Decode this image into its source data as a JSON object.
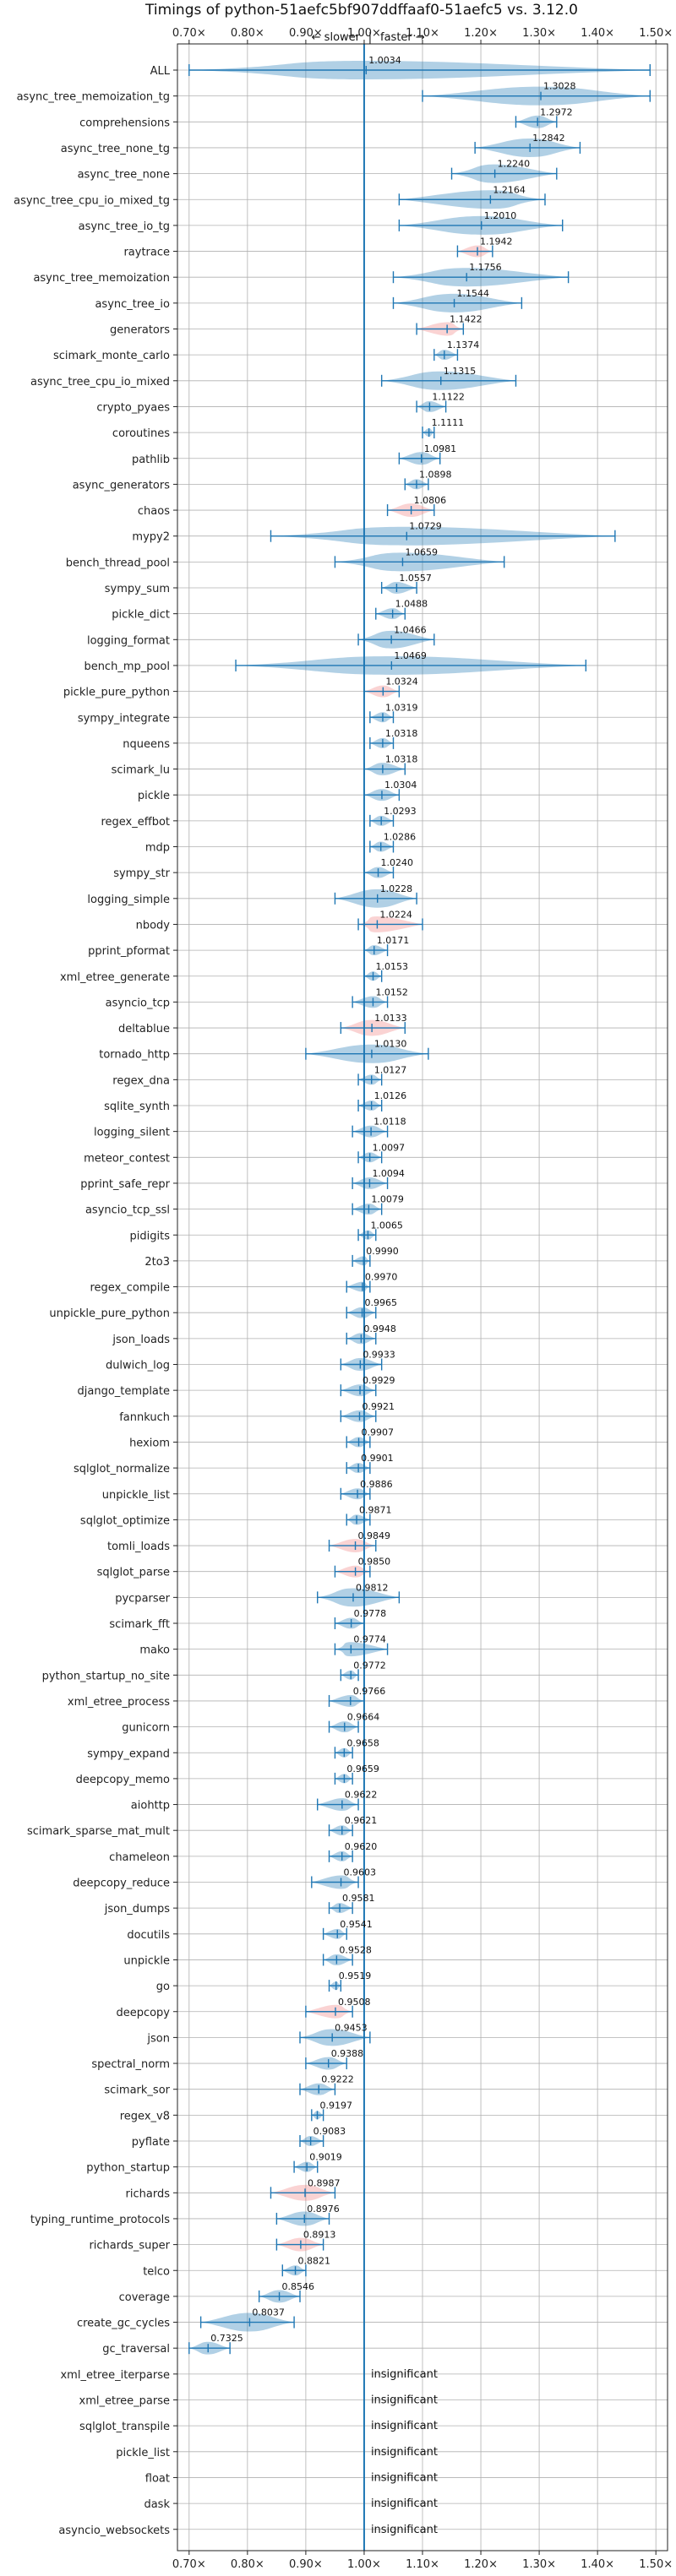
{
  "chart_data": {
    "type": "violin",
    "title": "Timings of python-51aefc5bf907ddffaaf0-51aefc5 vs. 3.12.0",
    "x_axis": {
      "xlim": [
        0.68,
        1.52
      ],
      "tick_values": [
        0.7,
        0.8,
        0.9,
        1.0,
        1.1,
        1.2,
        1.3,
        1.4,
        1.5
      ],
      "tick_labels": [
        "0.70×",
        "0.80×",
        "0.90×",
        "1.00×",
        "1.10×",
        "1.20×",
        "1.30×",
        "1.40×",
        "1.50×"
      ],
      "reference_line": 1.0,
      "ticks_top_and_bottom": true,
      "grid": true
    },
    "direction_labels": {
      "slower": "← slower",
      "separator": "|",
      "faster": "faster →"
    },
    "insignificant_text": "insignificant",
    "colors": {
      "normal": "#1f77b4",
      "slower": "#f08080"
    },
    "benchmarks": [
      {
        "name": "ALL",
        "value": 1.0034,
        "min": 0.7,
        "max": 1.49,
        "color": "normal"
      },
      {
        "name": "async_tree_memoization_tg",
        "value": 1.3028,
        "min": 1.1,
        "max": 1.49,
        "color": "normal"
      },
      {
        "name": "comprehensions",
        "value": 1.2972,
        "min": 1.26,
        "max": 1.33,
        "color": "normal"
      },
      {
        "name": "async_tree_none_tg",
        "value": 1.2842,
        "min": 1.19,
        "max": 1.37,
        "color": "normal"
      },
      {
        "name": "async_tree_none",
        "value": 1.224,
        "min": 1.15,
        "max": 1.33,
        "color": "normal"
      },
      {
        "name": "async_tree_cpu_io_mixed_tg",
        "value": 1.2164,
        "min": 1.06,
        "max": 1.31,
        "color": "normal"
      },
      {
        "name": "async_tree_io_tg",
        "value": 1.201,
        "min": 1.06,
        "max": 1.34,
        "color": "normal"
      },
      {
        "name": "raytrace",
        "value": 1.1942,
        "min": 1.16,
        "max": 1.22,
        "color": "slower"
      },
      {
        "name": "async_tree_memoization",
        "value": 1.1756,
        "min": 1.05,
        "max": 1.35,
        "color": "normal"
      },
      {
        "name": "async_tree_io",
        "value": 1.1544,
        "min": 1.05,
        "max": 1.27,
        "color": "normal"
      },
      {
        "name": "generators",
        "value": 1.1422,
        "min": 1.09,
        "max": 1.17,
        "color": "slower"
      },
      {
        "name": "scimark_monte_carlo",
        "value": 1.1374,
        "min": 1.12,
        "max": 1.16,
        "color": "normal"
      },
      {
        "name": "async_tree_cpu_io_mixed",
        "value": 1.1315,
        "min": 1.03,
        "max": 1.26,
        "color": "normal"
      },
      {
        "name": "crypto_pyaes",
        "value": 1.1122,
        "min": 1.09,
        "max": 1.14,
        "color": "normal"
      },
      {
        "name": "coroutines",
        "value": 1.1111,
        "min": 1.1,
        "max": 1.12,
        "color": "normal"
      },
      {
        "name": "pathlib",
        "value": 1.0981,
        "min": 1.06,
        "max": 1.13,
        "color": "normal"
      },
      {
        "name": "async_generators",
        "value": 1.0898,
        "min": 1.07,
        "max": 1.11,
        "color": "normal"
      },
      {
        "name": "chaos",
        "value": 1.0806,
        "min": 1.04,
        "max": 1.12,
        "color": "slower"
      },
      {
        "name": "mypy2",
        "value": 1.0729,
        "min": 0.84,
        "max": 1.43,
        "color": "normal"
      },
      {
        "name": "bench_thread_pool",
        "value": 1.0659,
        "min": 0.95,
        "max": 1.24,
        "color": "normal"
      },
      {
        "name": "sympy_sum",
        "value": 1.0557,
        "min": 1.03,
        "max": 1.09,
        "color": "normal"
      },
      {
        "name": "pickle_dict",
        "value": 1.0488,
        "min": 1.02,
        "max": 1.07,
        "color": "normal"
      },
      {
        "name": "logging_format",
        "value": 1.0466,
        "min": 0.99,
        "max": 1.12,
        "color": "normal"
      },
      {
        "name": "bench_mp_pool",
        "value": 1.0469,
        "min": 0.78,
        "max": 1.38,
        "color": "normal"
      },
      {
        "name": "pickle_pure_python",
        "value": 1.0324,
        "min": 1.0,
        "max": 1.06,
        "color": "slower"
      },
      {
        "name": "sympy_integrate",
        "value": 1.0319,
        "min": 1.01,
        "max": 1.05,
        "color": "normal"
      },
      {
        "name": "nqueens",
        "value": 1.0318,
        "min": 1.01,
        "max": 1.05,
        "color": "normal"
      },
      {
        "name": "scimark_lu",
        "value": 1.0318,
        "min": 1.0,
        "max": 1.07,
        "color": "normal"
      },
      {
        "name": "pickle",
        "value": 1.0304,
        "min": 1.0,
        "max": 1.06,
        "color": "normal"
      },
      {
        "name": "regex_effbot",
        "value": 1.0293,
        "min": 1.01,
        "max": 1.05,
        "color": "normal"
      },
      {
        "name": "mdp",
        "value": 1.0286,
        "min": 1.01,
        "max": 1.05,
        "color": "normal"
      },
      {
        "name": "sympy_str",
        "value": 1.024,
        "min": 1.0,
        "max": 1.05,
        "color": "normal"
      },
      {
        "name": "logging_simple",
        "value": 1.0228,
        "min": 0.95,
        "max": 1.09,
        "color": "normal"
      },
      {
        "name": "nbody",
        "value": 1.0224,
        "min": 0.99,
        "max": 1.1,
        "color": "slower"
      },
      {
        "name": "pprint_pformat",
        "value": 1.0171,
        "min": 1.0,
        "max": 1.04,
        "color": "normal"
      },
      {
        "name": "xml_etree_generate",
        "value": 1.0153,
        "min": 1.0,
        "max": 1.03,
        "color": "normal"
      },
      {
        "name": "asyncio_tcp",
        "value": 1.0152,
        "min": 0.98,
        "max": 1.04,
        "color": "normal"
      },
      {
        "name": "deltablue",
        "value": 1.0133,
        "min": 0.96,
        "max": 1.07,
        "color": "slower"
      },
      {
        "name": "tornado_http",
        "value": 1.013,
        "min": 0.9,
        "max": 1.11,
        "color": "normal"
      },
      {
        "name": "regex_dna",
        "value": 1.0127,
        "min": 0.99,
        "max": 1.03,
        "color": "normal"
      },
      {
        "name": "sqlite_synth",
        "value": 1.0126,
        "min": 0.99,
        "max": 1.03,
        "color": "normal"
      },
      {
        "name": "logging_silent",
        "value": 1.0118,
        "min": 0.98,
        "max": 1.04,
        "color": "normal"
      },
      {
        "name": "meteor_contest",
        "value": 1.0097,
        "min": 0.99,
        "max": 1.03,
        "color": "normal"
      },
      {
        "name": "pprint_safe_repr",
        "value": 1.0094,
        "min": 0.98,
        "max": 1.04,
        "color": "normal"
      },
      {
        "name": "asyncio_tcp_ssl",
        "value": 1.0079,
        "min": 0.98,
        "max": 1.03,
        "color": "normal"
      },
      {
        "name": "pidigits",
        "value": 1.0065,
        "min": 0.99,
        "max": 1.02,
        "color": "normal"
      },
      {
        "name": "2to3",
        "value": 0.999,
        "min": 0.98,
        "max": 1.01,
        "color": "normal"
      },
      {
        "name": "regex_compile",
        "value": 0.997,
        "min": 0.97,
        "max": 1.01,
        "color": "normal"
      },
      {
        "name": "unpickle_pure_python",
        "value": 0.9965,
        "min": 0.97,
        "max": 1.02,
        "color": "normal"
      },
      {
        "name": "json_loads",
        "value": 0.9948,
        "min": 0.97,
        "max": 1.02,
        "color": "normal"
      },
      {
        "name": "dulwich_log",
        "value": 0.9933,
        "min": 0.96,
        "max": 1.03,
        "color": "normal"
      },
      {
        "name": "django_template",
        "value": 0.9929,
        "min": 0.96,
        "max": 1.02,
        "color": "normal"
      },
      {
        "name": "fannkuch",
        "value": 0.9921,
        "min": 0.96,
        "max": 1.02,
        "color": "normal"
      },
      {
        "name": "hexiom",
        "value": 0.9907,
        "min": 0.97,
        "max": 1.01,
        "color": "normal"
      },
      {
        "name": "sqlglot_normalize",
        "value": 0.9901,
        "min": 0.97,
        "max": 1.01,
        "color": "normal"
      },
      {
        "name": "unpickle_list",
        "value": 0.9886,
        "min": 0.96,
        "max": 1.01,
        "color": "normal"
      },
      {
        "name": "sqlglot_optimize",
        "value": 0.9871,
        "min": 0.97,
        "max": 1.01,
        "color": "normal"
      },
      {
        "name": "tomli_loads",
        "value": 0.9849,
        "min": 0.94,
        "max": 1.02,
        "color": "slower"
      },
      {
        "name": "sqlglot_parse",
        "value": 0.985,
        "min": 0.95,
        "max": 1.01,
        "color": "slower"
      },
      {
        "name": "pycparser",
        "value": 0.9812,
        "min": 0.92,
        "max": 1.06,
        "color": "normal"
      },
      {
        "name": "scimark_fft",
        "value": 0.9778,
        "min": 0.95,
        "max": 1.0,
        "color": "normal"
      },
      {
        "name": "mako",
        "value": 0.9774,
        "min": 0.95,
        "max": 1.04,
        "color": "normal"
      },
      {
        "name": "python_startup_no_site",
        "value": 0.9772,
        "min": 0.96,
        "max": 0.99,
        "color": "normal"
      },
      {
        "name": "xml_etree_process",
        "value": 0.9766,
        "min": 0.94,
        "max": 1.0,
        "color": "normal"
      },
      {
        "name": "gunicorn",
        "value": 0.9664,
        "min": 0.94,
        "max": 0.99,
        "color": "normal"
      },
      {
        "name": "sympy_expand",
        "value": 0.9658,
        "min": 0.95,
        "max": 0.98,
        "color": "normal"
      },
      {
        "name": "deepcopy_memo",
        "value": 0.9659,
        "min": 0.95,
        "max": 0.98,
        "color": "normal"
      },
      {
        "name": "aiohttp",
        "value": 0.9622,
        "min": 0.92,
        "max": 0.99,
        "color": "normal"
      },
      {
        "name": "scimark_sparse_mat_mult",
        "value": 0.9621,
        "min": 0.94,
        "max": 0.98,
        "color": "normal"
      },
      {
        "name": "chameleon",
        "value": 0.962,
        "min": 0.94,
        "max": 0.98,
        "color": "normal"
      },
      {
        "name": "deepcopy_reduce",
        "value": 0.9603,
        "min": 0.91,
        "max": 0.99,
        "color": "normal"
      },
      {
        "name": "json_dumps",
        "value": 0.9581,
        "min": 0.94,
        "max": 0.98,
        "color": "normal"
      },
      {
        "name": "docutils",
        "value": 0.9541,
        "min": 0.93,
        "max": 0.97,
        "color": "normal"
      },
      {
        "name": "unpickle",
        "value": 0.9528,
        "min": 0.93,
        "max": 0.98,
        "color": "normal"
      },
      {
        "name": "go",
        "value": 0.9519,
        "min": 0.94,
        "max": 0.96,
        "color": "normal"
      },
      {
        "name": "deepcopy",
        "value": 0.9508,
        "min": 0.9,
        "max": 0.98,
        "color": "slower"
      },
      {
        "name": "json",
        "value": 0.9453,
        "min": 0.89,
        "max": 1.01,
        "color": "normal"
      },
      {
        "name": "spectral_norm",
        "value": 0.9388,
        "min": 0.9,
        "max": 0.97,
        "color": "normal"
      },
      {
        "name": "scimark_sor",
        "value": 0.9222,
        "min": 0.89,
        "max": 0.95,
        "color": "normal"
      },
      {
        "name": "regex_v8",
        "value": 0.9197,
        "min": 0.91,
        "max": 0.93,
        "color": "normal"
      },
      {
        "name": "pyflate",
        "value": 0.9083,
        "min": 0.89,
        "max": 0.93,
        "color": "normal"
      },
      {
        "name": "python_startup",
        "value": 0.9019,
        "min": 0.88,
        "max": 0.92,
        "color": "normal"
      },
      {
        "name": "richards",
        "value": 0.8987,
        "min": 0.84,
        "max": 0.95,
        "color": "slower"
      },
      {
        "name": "typing_runtime_protocols",
        "value": 0.8976,
        "min": 0.85,
        "max": 0.94,
        "color": "normal"
      },
      {
        "name": "richards_super",
        "value": 0.8913,
        "min": 0.85,
        "max": 0.93,
        "color": "slower"
      },
      {
        "name": "telco",
        "value": 0.8821,
        "min": 0.86,
        "max": 0.9,
        "color": "normal"
      },
      {
        "name": "coverage",
        "value": 0.8546,
        "min": 0.82,
        "max": 0.89,
        "color": "normal"
      },
      {
        "name": "create_gc_cycles",
        "value": 0.8037,
        "min": 0.72,
        "max": 0.88,
        "color": "normal"
      },
      {
        "name": "gc_traversal",
        "value": 0.7325,
        "min": 0.7,
        "max": 0.77,
        "color": "normal"
      },
      {
        "name": "xml_etree_iterparse",
        "insignificant": true
      },
      {
        "name": "xml_etree_parse",
        "insignificant": true
      },
      {
        "name": "sqlglot_transpile",
        "insignificant": true
      },
      {
        "name": "pickle_list",
        "insignificant": true
      },
      {
        "name": "float",
        "insignificant": true
      },
      {
        "name": "dask",
        "insignificant": true
      },
      {
        "name": "asyncio_websockets",
        "insignificant": true
      }
    ]
  }
}
